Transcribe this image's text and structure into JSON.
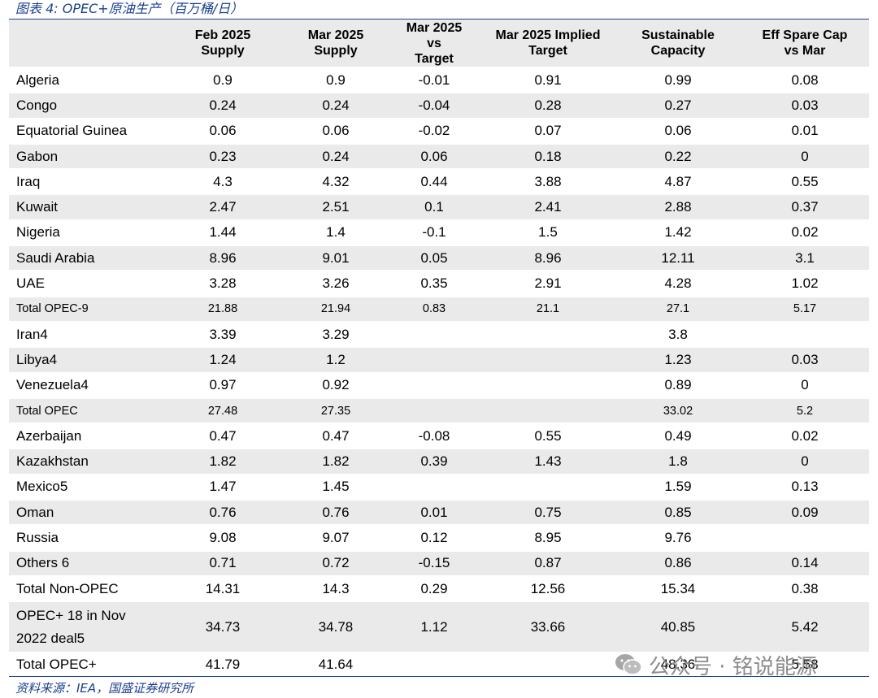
{
  "caption": "图表 4: OPEC+原油生产（百万桶/日）",
  "headers": [
    "",
    "Feb 2025\nSupply",
    "Mar 2025\nSupply",
    "Mar 2025\nvs\nTarget",
    "Mar 2025 Implied\nTarget",
    "Sustainable\nCapacity",
    "Eff Spare Cap\nvs Mar"
  ],
  "rows": [
    [
      "Algeria",
      "0.9",
      "0.9",
      "-0.01",
      "0.91",
      "0.99",
      "0.08"
    ],
    [
      "Congo",
      "0.24",
      "0.24",
      "-0.04",
      "0.28",
      "0.27",
      "0.03"
    ],
    [
      "Equatorial Guinea",
      "0.06",
      "0.06",
      "-0.02",
      "0.07",
      "0.06",
      "0.01"
    ],
    [
      "Gabon",
      "0.23",
      "0.24",
      "0.06",
      "0.18",
      "0.22",
      "0"
    ],
    [
      "Iraq",
      "4.3",
      "4.32",
      "0.44",
      "3.88",
      "4.87",
      "0.55"
    ],
    [
      "Kuwait",
      "2.47",
      "2.51",
      "0.1",
      "2.41",
      "2.88",
      "0.37"
    ],
    [
      "Nigeria",
      "1.44",
      "1.4",
      "-0.1",
      "1.5",
      "1.42",
      "0.02"
    ],
    [
      "Saudi Arabia",
      "8.96",
      "9.01",
      "0.05",
      "8.96",
      "12.11",
      "3.1"
    ],
    [
      "UAE",
      "3.28",
      "3.26",
      "0.35",
      "2.91",
      "4.28",
      "1.02"
    ],
    [
      "Total OPEC-9",
      "21.88",
      "21.94",
      "0.83",
      "21.1",
      "27.1",
      "5.17"
    ],
    [
      "Iran4",
      "3.39",
      "3.29",
      "",
      "",
      "3.8",
      ""
    ],
    [
      "Libya4",
      "1.24",
      "1.2",
      "",
      "",
      "1.23",
      "0.03"
    ],
    [
      "Venezuela4",
      "0.97",
      "0.92",
      "",
      "",
      "0.89",
      "0"
    ],
    [
      "Total OPEC",
      "27.48",
      "27.35",
      "",
      "",
      "33.02",
      "5.2"
    ],
    [
      "Azerbaijan",
      "0.47",
      "0.47",
      "-0.08",
      "0.55",
      "0.49",
      "0.02"
    ],
    [
      "Kazakhstan",
      "1.82",
      "1.82",
      "0.39",
      "1.43",
      "1.8",
      "0"
    ],
    [
      "Mexico5",
      "1.47",
      "1.45",
      "",
      "",
      "1.59",
      "0.13"
    ],
    [
      "Oman",
      "0.76",
      "0.76",
      "0.01",
      "0.75",
      "0.85",
      "0.09"
    ],
    [
      "Russia",
      "9.08",
      "9.07",
      "0.12",
      "8.95",
      "9.76",
      ""
    ],
    [
      "Others 6",
      "0.71",
      "0.72",
      "-0.15",
      "0.87",
      "0.86",
      "0.14"
    ],
    [
      "Total Non-OPEC",
      "14.31",
      "14.3",
      "0.29",
      "12.56",
      "15.34",
      "0.38"
    ],
    [
      "OPEC+ 18 in Nov\n2022 deal5",
      "34.73",
      "34.78",
      "1.12",
      "33.66",
      "40.85",
      "5.42"
    ],
    [
      "Total OPEC+",
      "41.79",
      "41.64",
      "",
      "",
      "48.36",
      "5.58"
    ]
  ],
  "source": "资料来源：IEA，国盛证券研究所",
  "watermark": {
    "icon": "wechat-icon",
    "text": "公众号 · 铭说能源"
  },
  "colors": {
    "accent": "#1a3f8f",
    "shade": "#eaeaea",
    "watermark": "#8c8c8c"
  }
}
